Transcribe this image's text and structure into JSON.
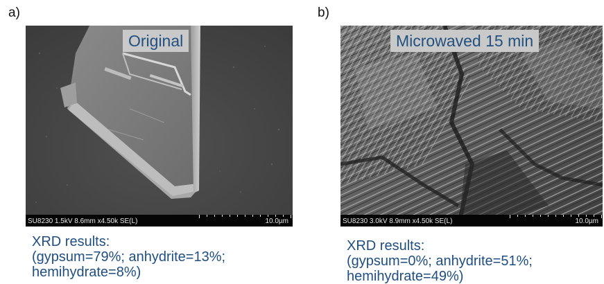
{
  "panels": [
    {
      "letter": "a)",
      "label": "Original",
      "sem_meta": "SU8230 1.5kV 8.6mm x4.50k SE(L)",
      "scale_bar": "10.0µm",
      "caption": {
        "heading": "XRD results:",
        "line1": "(gypsum=79%; anhydrite=13%;",
        "line2": "hemihydrate=8%)"
      }
    },
    {
      "letter": "b)",
      "label": "Microwaved 15 min",
      "sem_meta": "SU8230 3.0kV 8.9mm x4.50k SE(L)",
      "scale_bar": "10.0µm",
      "caption": {
        "heading": "XRD results:",
        "line1": "(gypsum=0%; anhydrite=51%;",
        "line2": "hemihydrate=49%)"
      }
    }
  ],
  "colors": {
    "label_text": "#22507f",
    "label_bg": "#c9c9c9",
    "caption_text": "#1f4e82"
  }
}
